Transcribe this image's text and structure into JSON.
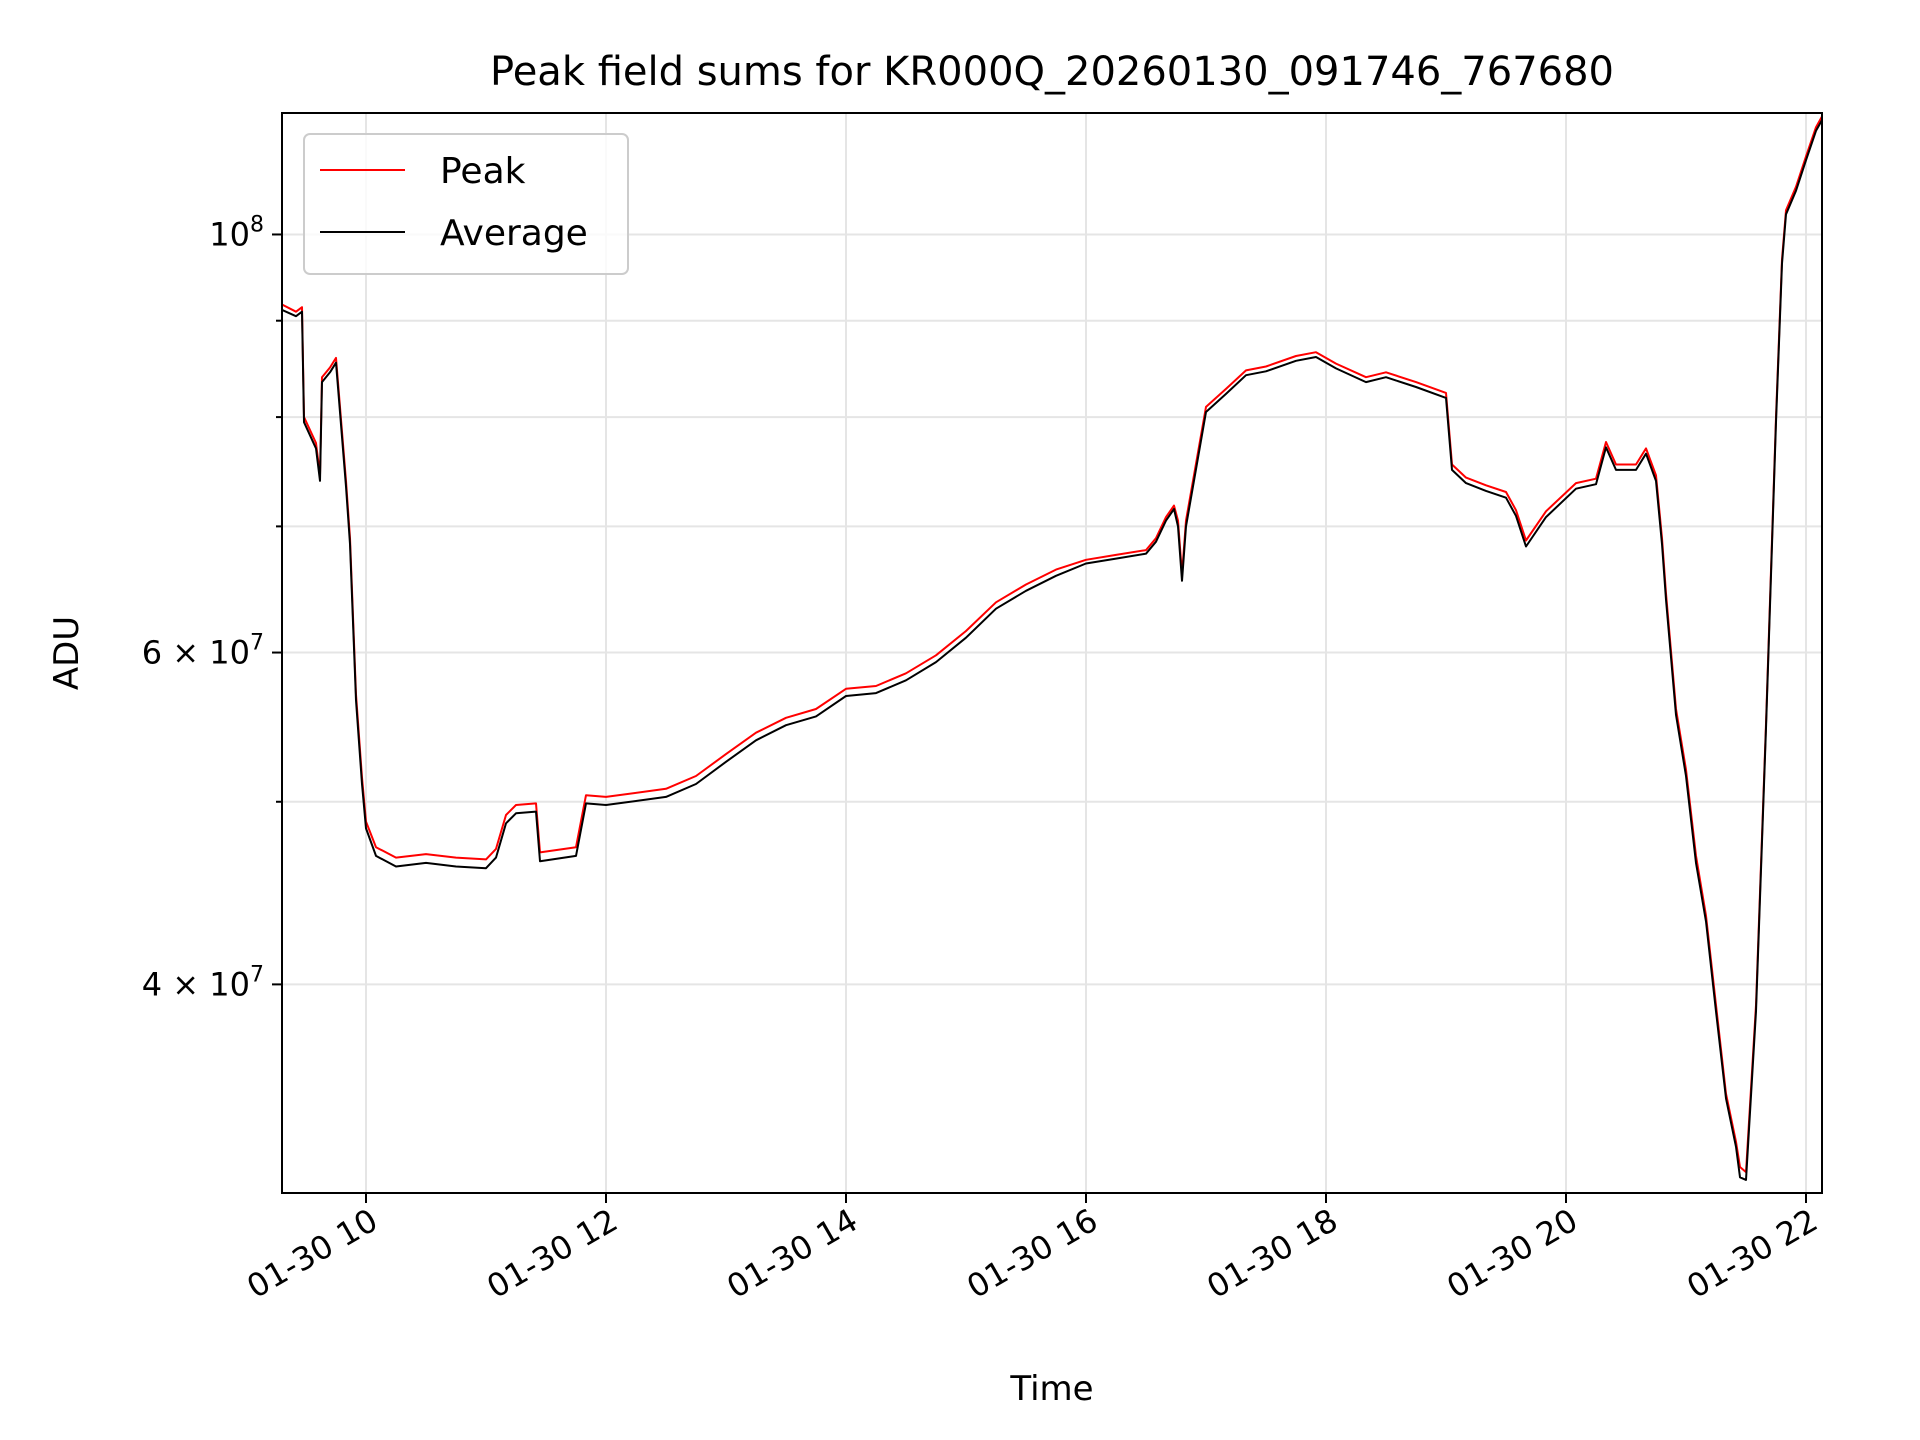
{
  "chart_data": {
    "type": "line",
    "title": "Peak field sums for KR000Q_20260130_091746_767680",
    "xlabel": "Time",
    "ylabel": "ADU",
    "yscale": "log",
    "xlim": [
      "2026-01-30T09:18",
      "2026-01-30T22:08"
    ],
    "ylim": [
      31000000,
      116000000
    ],
    "x_ticks": [
      {
        "t": "2026-01-30T10:00",
        "label": "01-30 10"
      },
      {
        "t": "2026-01-30T12:00",
        "label": "01-30 12"
      },
      {
        "t": "2026-01-30T14:00",
        "label": "01-30 14"
      },
      {
        "t": "2026-01-30T16:00",
        "label": "01-30 16"
      },
      {
        "t": "2026-01-30T18:00",
        "label": "01-30 18"
      },
      {
        "t": "2026-01-30T20:00",
        "label": "01-30 20"
      },
      {
        "t": "2026-01-30T22:00",
        "label": "01-30 22"
      }
    ],
    "y_ticks_major": [
      {
        "v": 100000000,
        "base": "10",
        "exp": "8",
        "mant": ""
      },
      {
        "v": 60000000,
        "base": "10",
        "exp": "7",
        "mant": "6"
      },
      {
        "v": 40000000,
        "base": "10",
        "exp": "7",
        "mant": "4"
      }
    ],
    "y_ticks_minor": [
      90000000,
      80000000,
      70000000,
      50000000
    ],
    "grid": true,
    "legend": {
      "position": "top-left"
    },
    "series": [
      {
        "name": "Peak",
        "color": "#ff0000",
        "points": [
          [
            "2026-01-30T09:18",
            91800000
          ],
          [
            "2026-01-30T09:25",
            91000000
          ],
          [
            "2026-01-30T09:28",
            91500000
          ],
          [
            "2026-01-30T09:29",
            80000000
          ],
          [
            "2026-01-30T09:35",
            77500000
          ],
          [
            "2026-01-30T09:37",
            74500000
          ],
          [
            "2026-01-30T09:38",
            84000000
          ],
          [
            "2026-01-30T09:42",
            85000000
          ],
          [
            "2026-01-30T09:45",
            86000000
          ],
          [
            "2026-01-30T09:50",
            74000000
          ],
          [
            "2026-01-30T09:52",
            69000000
          ],
          [
            "2026-01-30T09:55",
            57000000
          ],
          [
            "2026-01-30T09:58",
            51500000
          ],
          [
            "2026-01-30T10:00",
            48800000
          ],
          [
            "2026-01-30T10:05",
            47300000
          ],
          [
            "2026-01-30T10:15",
            46700000
          ],
          [
            "2026-01-30T10:30",
            46900000
          ],
          [
            "2026-01-30T10:45",
            46700000
          ],
          [
            "2026-01-30T11:00",
            46600000
          ],
          [
            "2026-01-30T11:05",
            47200000
          ],
          [
            "2026-01-30T11:10",
            49200000
          ],
          [
            "2026-01-30T11:15",
            49800000
          ],
          [
            "2026-01-30T11:25",
            49900000
          ],
          [
            "2026-01-30T11:27",
            47000000
          ],
          [
            "2026-01-30T11:45",
            47300000
          ],
          [
            "2026-01-30T11:50",
            50400000
          ],
          [
            "2026-01-30T12:00",
            50300000
          ],
          [
            "2026-01-30T12:30",
            50800000
          ],
          [
            "2026-01-30T12:45",
            51600000
          ],
          [
            "2026-01-30T13:00",
            53000000
          ],
          [
            "2026-01-30T13:15",
            54400000
          ],
          [
            "2026-01-30T13:30",
            55400000
          ],
          [
            "2026-01-30T13:45",
            56000000
          ],
          [
            "2026-01-30T14:00",
            57400000
          ],
          [
            "2026-01-30T14:15",
            57600000
          ],
          [
            "2026-01-30T14:30",
            58500000
          ],
          [
            "2026-01-30T14:45",
            59800000
          ],
          [
            "2026-01-30T15:00",
            61600000
          ],
          [
            "2026-01-30T15:15",
            63800000
          ],
          [
            "2026-01-30T15:30",
            65200000
          ],
          [
            "2026-01-30T15:45",
            66400000
          ],
          [
            "2026-01-30T16:00",
            67200000
          ],
          [
            "2026-01-30T16:15",
            67600000
          ],
          [
            "2026-01-30T16:30",
            68000000
          ],
          [
            "2026-01-30T16:35",
            69000000
          ],
          [
            "2026-01-30T16:40",
            70800000
          ],
          [
            "2026-01-30T16:44",
            71800000
          ],
          [
            "2026-01-30T16:46",
            70500000
          ],
          [
            "2026-01-30T16:48",
            66000000
          ],
          [
            "2026-01-30T16:50",
            70500000
          ],
          [
            "2026-01-30T17:00",
            81000000
          ],
          [
            "2026-01-30T17:10",
            82800000
          ],
          [
            "2026-01-30T17:20",
            84700000
          ],
          [
            "2026-01-30T17:30",
            85100000
          ],
          [
            "2026-01-30T17:45",
            86200000
          ],
          [
            "2026-01-30T17:55",
            86600000
          ],
          [
            "2026-01-30T18:05",
            85400000
          ],
          [
            "2026-01-30T18:20",
            84000000
          ],
          [
            "2026-01-30T18:30",
            84500000
          ],
          [
            "2026-01-30T18:45",
            83500000
          ],
          [
            "2026-01-30T19:00",
            82400000
          ],
          [
            "2026-01-30T19:03",
            75500000
          ],
          [
            "2026-01-30T19:10",
            74300000
          ],
          [
            "2026-01-30T19:20",
            73600000
          ],
          [
            "2026-01-30T19:30",
            73000000
          ],
          [
            "2026-01-30T19:35",
            71400000
          ],
          [
            "2026-01-30T19:40",
            68800000
          ],
          [
            "2026-01-30T19:50",
            71300000
          ],
          [
            "2026-01-30T20:05",
            73800000
          ],
          [
            "2026-01-30T20:15",
            74200000
          ],
          [
            "2026-01-30T20:20",
            77600000
          ],
          [
            "2026-01-30T20:25",
            75500000
          ],
          [
            "2026-01-30T20:35",
            75500000
          ],
          [
            "2026-01-30T20:40",
            77000000
          ],
          [
            "2026-01-30T20:45",
            74500000
          ],
          [
            "2026-01-30T20:48",
            69000000
          ],
          [
            "2026-01-30T20:50",
            64500000
          ],
          [
            "2026-01-30T20:55",
            56000000
          ],
          [
            "2026-01-30T21:00",
            52000000
          ],
          [
            "2026-01-30T21:05",
            46800000
          ],
          [
            "2026-01-30T21:10",
            43500000
          ],
          [
            "2026-01-30T21:15",
            39000000
          ],
          [
            "2026-01-30T21:20",
            35000000
          ],
          [
            "2026-01-30T21:25",
            33000000
          ],
          [
            "2026-01-30T21:27",
            32000000
          ],
          [
            "2026-01-30T21:30",
            31800000
          ],
          [
            "2026-01-30T21:35",
            39000000
          ],
          [
            "2026-01-30T21:40",
            55000000
          ],
          [
            "2026-01-30T21:45",
            80000000
          ],
          [
            "2026-01-30T21:48",
            97000000
          ],
          [
            "2026-01-30T21:50",
            103000000
          ],
          [
            "2026-01-30T21:55",
            106000000
          ],
          [
            "2026-01-30T22:00",
            110000000
          ],
          [
            "2026-01-30T22:05",
            114000000
          ],
          [
            "2026-01-30T22:08",
            115500000
          ]
        ]
      },
      {
        "name": "Average",
        "color": "#000000",
        "points": [
          [
            "2026-01-30T09:18",
            91200000
          ],
          [
            "2026-01-30T09:25",
            90500000
          ],
          [
            "2026-01-30T09:28",
            91000000
          ],
          [
            "2026-01-30T09:29",
            79500000
          ],
          [
            "2026-01-30T09:35",
            77000000
          ],
          [
            "2026-01-30T09:37",
            74000000
          ],
          [
            "2026-01-30T09:38",
            83500000
          ],
          [
            "2026-01-30T09:42",
            84500000
          ],
          [
            "2026-01-30T09:45",
            85500000
          ],
          [
            "2026-01-30T09:50",
            73500000
          ],
          [
            "2026-01-30T09:52",
            68500000
          ],
          [
            "2026-01-30T09:55",
            56600000
          ],
          [
            "2026-01-30T09:58",
            51100000
          ],
          [
            "2026-01-30T10:00",
            48400000
          ],
          [
            "2026-01-30T10:05",
            46800000
          ],
          [
            "2026-01-30T10:15",
            46200000
          ],
          [
            "2026-01-30T10:30",
            46400000
          ],
          [
            "2026-01-30T10:45",
            46200000
          ],
          [
            "2026-01-30T11:00",
            46100000
          ],
          [
            "2026-01-30T11:05",
            46700000
          ],
          [
            "2026-01-30T11:10",
            48700000
          ],
          [
            "2026-01-30T11:15",
            49300000
          ],
          [
            "2026-01-30T11:25",
            49400000
          ],
          [
            "2026-01-30T11:27",
            46500000
          ],
          [
            "2026-01-30T11:45",
            46800000
          ],
          [
            "2026-01-30T11:50",
            49900000
          ],
          [
            "2026-01-30T12:00",
            49800000
          ],
          [
            "2026-01-30T12:30",
            50300000
          ],
          [
            "2026-01-30T12:45",
            51100000
          ],
          [
            "2026-01-30T13:00",
            52500000
          ],
          [
            "2026-01-30T13:15",
            53900000
          ],
          [
            "2026-01-30T13:30",
            54900000
          ],
          [
            "2026-01-30T13:45",
            55500000
          ],
          [
            "2026-01-30T14:00",
            56900000
          ],
          [
            "2026-01-30T14:15",
            57100000
          ],
          [
            "2026-01-30T14:30",
            58000000
          ],
          [
            "2026-01-30T14:45",
            59300000
          ],
          [
            "2026-01-30T15:00",
            61100000
          ],
          [
            "2026-01-30T15:15",
            63300000
          ],
          [
            "2026-01-30T15:30",
            64700000
          ],
          [
            "2026-01-30T15:45",
            65900000
          ],
          [
            "2026-01-30T16:00",
            66900000
          ],
          [
            "2026-01-30T16:15",
            67300000
          ],
          [
            "2026-01-30T16:30",
            67700000
          ],
          [
            "2026-01-30T16:35",
            68700000
          ],
          [
            "2026-01-30T16:40",
            70500000
          ],
          [
            "2026-01-30T16:44",
            71500000
          ],
          [
            "2026-01-30T16:46",
            70000000
          ],
          [
            "2026-01-30T16:48",
            65500000
          ],
          [
            "2026-01-30T16:50",
            70000000
          ],
          [
            "2026-01-30T17:00",
            80500000
          ],
          [
            "2026-01-30T17:10",
            82300000
          ],
          [
            "2026-01-30T17:20",
            84200000
          ],
          [
            "2026-01-30T17:30",
            84600000
          ],
          [
            "2026-01-30T17:45",
            85700000
          ],
          [
            "2026-01-30T17:55",
            86100000
          ],
          [
            "2026-01-30T18:05",
            84900000
          ],
          [
            "2026-01-30T18:20",
            83500000
          ],
          [
            "2026-01-30T18:30",
            84000000
          ],
          [
            "2026-01-30T18:45",
            83000000
          ],
          [
            "2026-01-30T19:00",
            81900000
          ],
          [
            "2026-01-30T19:03",
            75000000
          ],
          [
            "2026-01-30T19:10",
            73800000
          ],
          [
            "2026-01-30T19:20",
            73100000
          ],
          [
            "2026-01-30T19:30",
            72500000
          ],
          [
            "2026-01-30T19:35",
            70900000
          ],
          [
            "2026-01-30T19:40",
            68300000
          ],
          [
            "2026-01-30T19:50",
            70800000
          ],
          [
            "2026-01-30T20:05",
            73300000
          ],
          [
            "2026-01-30T20:15",
            73700000
          ],
          [
            "2026-01-30T20:20",
            77100000
          ],
          [
            "2026-01-30T20:25",
            75000000
          ],
          [
            "2026-01-30T20:35",
            75000000
          ],
          [
            "2026-01-30T20:40",
            76500000
          ],
          [
            "2026-01-30T20:45",
            74000000
          ],
          [
            "2026-01-30T20:48",
            68500000
          ],
          [
            "2026-01-30T20:50",
            64000000
          ],
          [
            "2026-01-30T20:55",
            55600000
          ],
          [
            "2026-01-30T21:00",
            51600000
          ],
          [
            "2026-01-30T21:05",
            46400000
          ],
          [
            "2026-01-30T21:10",
            43200000
          ],
          [
            "2026-01-30T21:15",
            38700000
          ],
          [
            "2026-01-30T21:20",
            34800000
          ],
          [
            "2026-01-30T21:25",
            32800000
          ],
          [
            "2026-01-30T21:27",
            31600000
          ],
          [
            "2026-01-30T21:30",
            31500000
          ],
          [
            "2026-01-30T21:35",
            38700000
          ],
          [
            "2026-01-30T21:40",
            54700000
          ],
          [
            "2026-01-30T21:45",
            79500000
          ],
          [
            "2026-01-30T21:48",
            96500000
          ],
          [
            "2026-01-30T21:50",
            102500000
          ],
          [
            "2026-01-30T21:55",
            105500000
          ],
          [
            "2026-01-30T22:00",
            109500000
          ],
          [
            "2026-01-30T22:05",
            113500000
          ],
          [
            "2026-01-30T22:08",
            115000000
          ]
        ]
      }
    ]
  }
}
